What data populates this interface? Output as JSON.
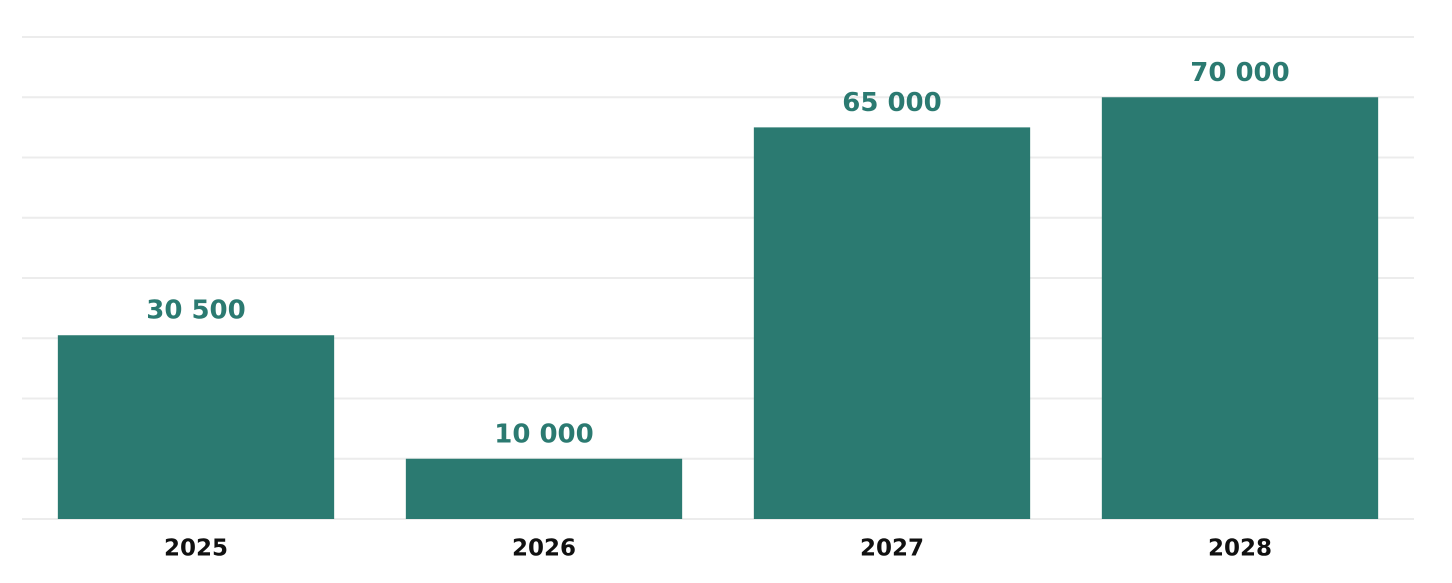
{
  "chart_data": {
    "type": "bar",
    "categories": [
      "2025",
      "2026",
      "2027",
      "2028"
    ],
    "values": [
      30500,
      10000,
      65000,
      70000
    ],
    "value_labels": [
      "30 500",
      "10 000",
      "65 000",
      "70 000"
    ],
    "color": "#2b7a71",
    "ylim": [
      0,
      80000
    ],
    "yticks": [
      0,
      10000,
      20000,
      30000,
      40000,
      50000,
      60000,
      70000,
      80000
    ],
    "grid": true
  }
}
